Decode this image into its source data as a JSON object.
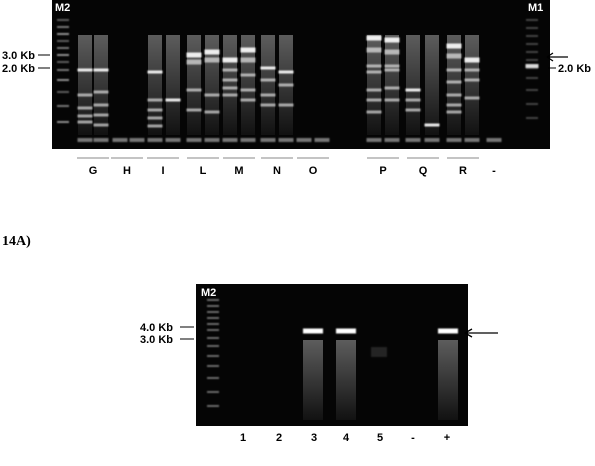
{
  "top_gel": {
    "markers": {
      "left": "M2",
      "right": "M1"
    },
    "size_labels": [
      "3.0 Kb",
      "2.0 Kb"
    ],
    "right_size_label": "2.0 Kb",
    "lanes": [
      "G",
      "H",
      "I",
      "L",
      "M",
      "N",
      "O",
      "P",
      "Q",
      "R",
      "-"
    ]
  },
  "figure_label": "14A)",
  "bottom_gel": {
    "marker": "M2",
    "size_labels": [
      "4.0 Kb",
      "3.0 Kb"
    ],
    "lanes": [
      "1",
      "2",
      "3",
      "4",
      "5",
      "-",
      "+"
    ]
  }
}
